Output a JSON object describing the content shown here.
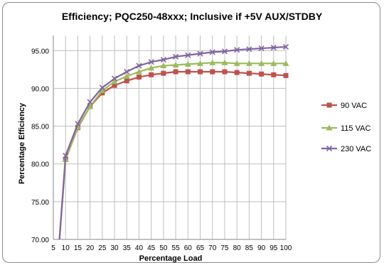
{
  "chart_data": {
    "type": "line",
    "title": "Efficiency; PQC250-48xxx; Inclusive if +5V AUX/STDBY",
    "xlabel": "Percentage Load",
    "ylabel": "Percentage Efficiency",
    "xlim": [
      5,
      100
    ],
    "ylim": [
      70,
      97
    ],
    "x_ticks": [
      "5",
      "10",
      "15",
      "20",
      "25",
      "30",
      "35",
      "40",
      "45",
      "50",
      "55",
      "60",
      "65",
      "70",
      "75",
      "80",
      "85",
      "90",
      "95",
      "100"
    ],
    "y_ticks": [
      "70.00",
      "75.00",
      "80.00",
      "85.00",
      "90.00",
      "95.00"
    ],
    "grid": true,
    "legend_position": "right",
    "x": [
      7.5,
      10,
      15,
      20,
      25,
      30,
      35,
      40,
      45,
      50,
      55,
      60,
      65,
      70,
      75,
      80,
      85,
      90,
      95,
      100
    ],
    "series": [
      {
        "name": "90 VAC",
        "color": "#c0504d",
        "marker": "square",
        "values": [
          70.0,
          80.6,
          84.8,
          87.6,
          89.4,
          90.4,
          91.0,
          91.5,
          91.8,
          92.0,
          92.2,
          92.2,
          92.2,
          92.2,
          92.2,
          92.1,
          92.0,
          91.9,
          91.8,
          91.7
        ]
      },
      {
        "name": "115 VAC",
        "color": "#9bbb59",
        "marker": "triangle",
        "values": [
          70.0,
          80.6,
          84.9,
          87.6,
          89.7,
          90.9,
          91.6,
          92.2,
          92.7,
          93.0,
          93.1,
          93.2,
          93.3,
          93.4,
          93.4,
          93.3,
          93.3,
          93.3,
          93.3,
          93.3
        ]
      },
      {
        "name": "230 VAC",
        "color": "#8064a2",
        "marker": "x",
        "values": [
          70.0,
          81.1,
          85.3,
          88.2,
          90.1,
          91.3,
          92.2,
          93.0,
          93.5,
          93.8,
          94.2,
          94.4,
          94.6,
          94.8,
          94.9,
          95.1,
          95.2,
          95.3,
          95.4,
          95.5
        ]
      }
    ]
  }
}
